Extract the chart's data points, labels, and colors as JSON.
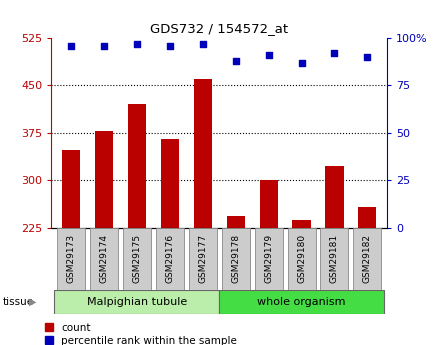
{
  "title": "GDS732 / 154572_at",
  "samples": [
    "GSM29173",
    "GSM29174",
    "GSM29175",
    "GSM29176",
    "GSM29177",
    "GSM29178",
    "GSM29179",
    "GSM29180",
    "GSM29181",
    "GSM29182"
  ],
  "counts": [
    348,
    378,
    420,
    365,
    460,
    243,
    300,
    237,
    322,
    258
  ],
  "percentile_ranks": [
    96,
    96,
    97,
    96,
    97,
    88,
    91,
    87,
    92,
    90
  ],
  "y_min": 225,
  "y_max": 525,
  "y_ticks": [
    225,
    300,
    375,
    450,
    525
  ],
  "y2_ticks": [
    0,
    25,
    50,
    75,
    100
  ],
  "bar_color": "#bb0000",
  "dot_color": "#0000bb",
  "tissue_groups": [
    {
      "label": "Malpighian tubule",
      "start": 0,
      "end": 5,
      "color": "#bbeeaa"
    },
    {
      "label": "whole organism",
      "start": 5,
      "end": 10,
      "color": "#44dd44"
    }
  ],
  "legend_count_label": "count",
  "legend_pct_label": "percentile rank within the sample",
  "tissue_label": "tissue",
  "bar_width": 0.55,
  "grid_color": "black",
  "grid_linestyle": ":",
  "baseline": 225
}
